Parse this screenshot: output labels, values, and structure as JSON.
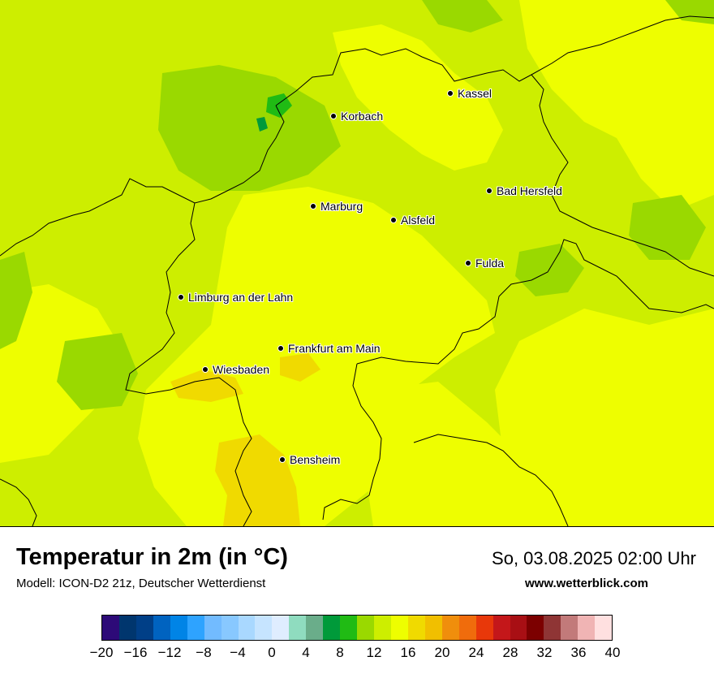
{
  "header": {
    "title": "Temperatur in 2m (in °C)",
    "subtitle": "Modell: ICON-D2 21z, Deutscher Wetterdienst",
    "datetime": "So, 03.08.2025 02:00 Uhr",
    "site": "www.wetterblick.com"
  },
  "map": {
    "cities": [
      {
        "name": "Kassel"
      },
      {
        "name": "Korbach"
      },
      {
        "name": "Bad Hersfeld"
      },
      {
        "name": "Marburg"
      },
      {
        "name": "Alsfeld"
      },
      {
        "name": "Fulda"
      },
      {
        "name": "Limburg an der Lahn"
      },
      {
        "name": "Frankfurt am Main"
      },
      {
        "name": "Wiesbaden"
      },
      {
        "name": "Bensheim"
      }
    ]
  },
  "legend": {
    "unit": "°C",
    "colors": [
      "#2d0a78",
      "#00366e",
      "#003f87",
      "#0063c0",
      "#0084e6",
      "#2ea3ff",
      "#72bbff",
      "#88c8ff",
      "#a9d8ff",
      "#c6e4ff",
      "#dfedff",
      "#8fdcbf",
      "#6aad8a",
      "#009a3a",
      "#20bb14",
      "#9ad900",
      "#cdee00",
      "#eefe00",
      "#f0da00",
      "#f1bf00",
      "#f08e0c",
      "#f06c0c",
      "#e8380a",
      "#c4171a",
      "#a80f14",
      "#7c0000",
      "#8f3535",
      "#c27a7a",
      "#f0b4b4",
      "#ffe0e0"
    ],
    "tick_labels": [
      "−20",
      "−16",
      "−12",
      "−8",
      "−4",
      "0",
      "4",
      "8",
      "12",
      "16",
      "20",
      "24",
      "28",
      "32",
      "36",
      "40"
    ]
  }
}
